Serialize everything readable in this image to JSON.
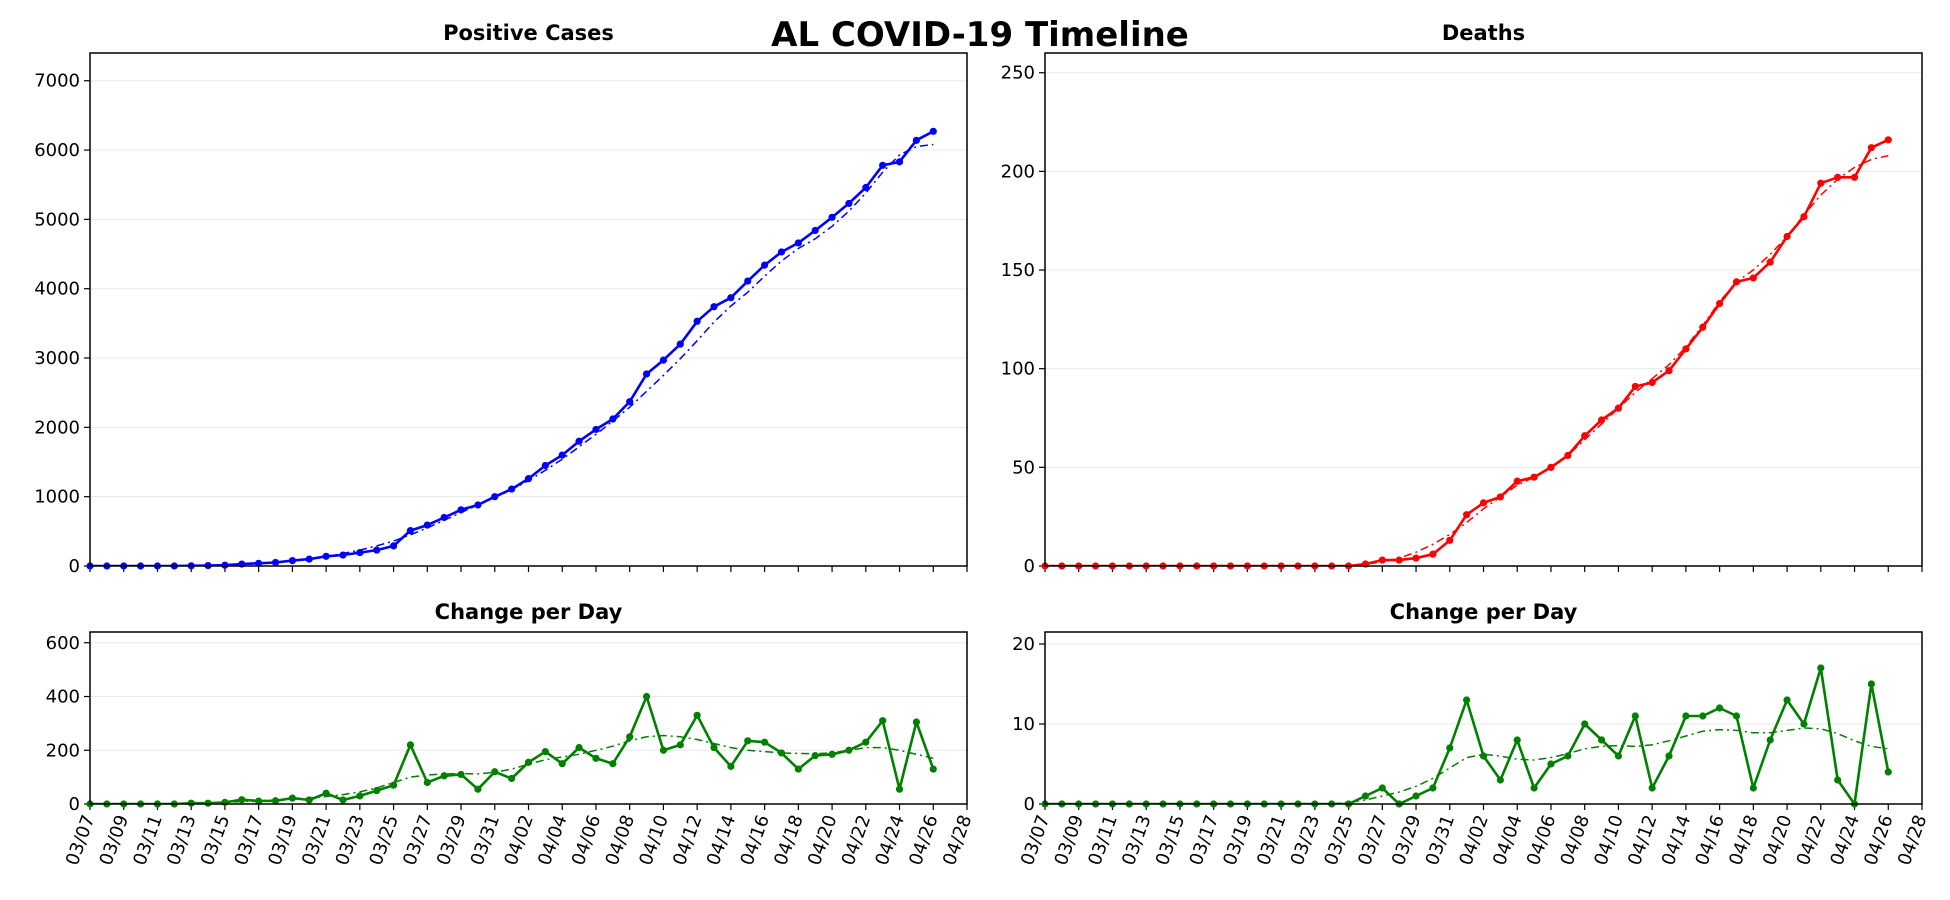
{
  "suptitle": "AL COVID-19 Timeline",
  "colors": {
    "cases": "#0000ff",
    "deaths": "#ff0000",
    "change": "#008000"
  },
  "chart_data": [
    {
      "id": "cases",
      "type": "line",
      "title": "Positive Cases",
      "color": "#0000ff",
      "x_start": "03/07",
      "x": [
        "03/07",
        "03/08",
        "03/09",
        "03/10",
        "03/11",
        "03/12",
        "03/13",
        "03/14",
        "03/15",
        "03/16",
        "03/17",
        "03/18",
        "03/19",
        "03/20",
        "03/21",
        "03/22",
        "03/23",
        "03/24",
        "03/25",
        "03/26",
        "03/27",
        "03/28",
        "03/29",
        "03/30",
        "03/31",
        "04/01",
        "04/02",
        "04/03",
        "04/04",
        "04/05",
        "04/06",
        "04/07",
        "04/08",
        "04/09",
        "04/10",
        "04/11",
        "04/12",
        "04/13",
        "04/14",
        "04/15",
        "04/16",
        "04/17",
        "04/18",
        "04/19",
        "04/20",
        "04/21",
        "04/22",
        "04/23",
        "04/24",
        "04/25",
        "04/26"
      ],
      "series": [
        {
          "values": [
            0,
            0,
            0,
            0,
            0,
            0,
            3,
            6,
            12,
            28,
            39,
            51,
            78,
            99,
            140,
            158,
            193,
            230,
            290,
            510,
            590,
            700,
            810,
            880,
            1000,
            1110,
            1260,
            1450,
            1600,
            1800,
            1970,
            2120,
            2370,
            2770,
            2970,
            3200,
            3530,
            3740,
            3870,
            4110,
            4340,
            4530,
            4660,
            4840,
            5030,
            5230,
            5460,
            5780,
            5830,
            6140,
            6270
          ]
        },
        {
          "style": "dashdot",
          "values": [
            0,
            0,
            0,
            0,
            0,
            0,
            3,
            8,
            15,
            25,
            38,
            55,
            78,
            105,
            140,
            180,
            230,
            290,
            360,
            450,
            550,
            660,
            770,
            880,
            990,
            1100,
            1230,
            1380,
            1540,
            1720,
            1900,
            2090,
            2290,
            2520,
            2750,
            2990,
            3250,
            3520,
            3750,
            3950,
            4180,
            4400,
            4580,
            4720,
            4900,
            5120,
            5380,
            5680,
            5930,
            6050,
            6080
          ]
        }
      ],
      "ylim": [
        0,
        7400
      ],
      "yticks": [
        0,
        1000,
        2000,
        3000,
        4000,
        5000,
        6000,
        7000
      ],
      "grid": true
    },
    {
      "id": "deaths",
      "type": "line",
      "title": "Deaths",
      "color": "#ff0000",
      "x_start": "03/07",
      "x": [
        "03/07",
        "03/08",
        "03/09",
        "03/10",
        "03/11",
        "03/12",
        "03/13",
        "03/14",
        "03/15",
        "03/16",
        "03/17",
        "03/18",
        "03/19",
        "03/20",
        "03/21",
        "03/22",
        "03/23",
        "03/24",
        "03/25",
        "03/26",
        "03/27",
        "03/28",
        "03/29",
        "03/30",
        "03/31",
        "04/01",
        "04/02",
        "04/03",
        "04/04",
        "04/05",
        "04/06",
        "04/07",
        "04/08",
        "04/09",
        "04/10",
        "04/11",
        "04/12",
        "04/13",
        "04/14",
        "04/15",
        "04/16",
        "04/17",
        "04/18",
        "04/19",
        "04/20",
        "04/21",
        "04/22",
        "04/23",
        "04/24",
        "04/25",
        "04/26"
      ],
      "series": [
        {
          "values": [
            0,
            0,
            0,
            0,
            0,
            0,
            0,
            0,
            0,
            0,
            0,
            0,
            0,
            0,
            0,
            0,
            0,
            0,
            0,
            1,
            3,
            3,
            4,
            6,
            13,
            26,
            32,
            35,
            43,
            45,
            50,
            56,
            66,
            74,
            80,
            91,
            93,
            99,
            110,
            121,
            133,
            144,
            146,
            154,
            167,
            177,
            194,
            197,
            197,
            212,
            216
          ]
        },
        {
          "style": "dashdot",
          "values": [
            0,
            0,
            0,
            0,
            0,
            0,
            0,
            0,
            0,
            0,
            0,
            0,
            0,
            0,
            0,
            0,
            0,
            0,
            0,
            1,
            2,
            4,
            7,
            11,
            16,
            22,
            29,
            35,
            41,
            45,
            50,
            56,
            64,
            72,
            80,
            88,
            95,
            102,
            111,
            122,
            134,
            144,
            150,
            158,
            167,
            178,
            188,
            196,
            202,
            206,
            208
          ]
        }
      ],
      "ylim": [
        0,
        260
      ],
      "yticks": [
        0,
        50,
        100,
        150,
        200,
        250
      ],
      "grid": true
    },
    {
      "id": "cases-change",
      "type": "line",
      "title": "Change per Day",
      "color": "#008000",
      "x_start": "03/07",
      "x": [
        "03/07",
        "03/08",
        "03/09",
        "03/10",
        "03/11",
        "03/12",
        "03/13",
        "03/14",
        "03/15",
        "03/16",
        "03/17",
        "03/18",
        "03/19",
        "03/20",
        "03/21",
        "03/22",
        "03/23",
        "03/24",
        "03/25",
        "03/26",
        "03/27",
        "03/28",
        "03/29",
        "03/30",
        "03/31",
        "04/01",
        "04/02",
        "04/03",
        "04/04",
        "04/05",
        "04/06",
        "04/07",
        "04/08",
        "04/09",
        "04/10",
        "04/11",
        "04/12",
        "04/13",
        "04/14",
        "04/15",
        "04/16",
        "04/17",
        "04/18",
        "04/19",
        "04/20",
        "04/21",
        "04/22",
        "04/23",
        "04/24",
        "04/25",
        "04/26"
      ],
      "series": [
        {
          "values": [
            0,
            0,
            0,
            0,
            0,
            0,
            3,
            3,
            6,
            16,
            11,
            12,
            22,
            15,
            40,
            15,
            30,
            50,
            70,
            220,
            80,
            105,
            110,
            55,
            120,
            95,
            155,
            195,
            150,
            210,
            170,
            150,
            250,
            400,
            200,
            220,
            330,
            210,
            140,
            235,
            230,
            190,
            130,
            180,
            185,
            200,
            230,
            310,
            55,
            305,
            130
          ]
        },
        {
          "style": "dashdot",
          "values": [
            0,
            0,
            0,
            0,
            0,
            0,
            2,
            4,
            6,
            9,
            12,
            15,
            18,
            22,
            28,
            35,
            45,
            60,
            80,
            100,
            108,
            112,
            113,
            112,
            118,
            130,
            148,
            165,
            175,
            185,
            200,
            215,
            235,
            250,
            255,
            250,
            240,
            225,
            210,
            200,
            195,
            190,
            188,
            187,
            190,
            200,
            210,
            210,
            200,
            185,
            170
          ]
        }
      ],
      "ylim": [
        0,
        640
      ],
      "yticks": [
        0,
        200,
        400,
        600
      ],
      "xticks": [
        "03/07",
        "03/09",
        "03/11",
        "03/13",
        "03/15",
        "03/17",
        "03/19",
        "03/21",
        "03/23",
        "03/25",
        "03/27",
        "03/29",
        "03/31",
        "04/02",
        "04/04",
        "04/06",
        "04/08",
        "04/10",
        "04/12",
        "04/14",
        "04/16",
        "04/18",
        "04/20",
        "04/22",
        "04/24",
        "04/26",
        "04/28"
      ],
      "grid": true
    },
    {
      "id": "deaths-change",
      "type": "line",
      "title": "Change per Day",
      "color": "#008000",
      "x_start": "03/07",
      "x": [
        "03/07",
        "03/08",
        "03/09",
        "03/10",
        "03/11",
        "03/12",
        "03/13",
        "03/14",
        "03/15",
        "03/16",
        "03/17",
        "03/18",
        "03/19",
        "03/20",
        "03/21",
        "03/22",
        "03/23",
        "03/24",
        "03/25",
        "03/26",
        "03/27",
        "03/28",
        "03/29",
        "03/30",
        "03/31",
        "04/01",
        "04/02",
        "04/03",
        "04/04",
        "04/05",
        "04/06",
        "04/07",
        "04/08",
        "04/09",
        "04/10",
        "04/11",
        "04/12",
        "04/13",
        "04/14",
        "04/15",
        "04/16",
        "04/17",
        "04/18",
        "04/19",
        "04/20",
        "04/21",
        "04/22",
        "04/23",
        "04/24",
        "04/25",
        "04/26"
      ],
      "series": [
        {
          "values": [
            0,
            0,
            0,
            0,
            0,
            0,
            0,
            0,
            0,
            0,
            0,
            0,
            0,
            0,
            0,
            0,
            0,
            0,
            0,
            1,
            2,
            0,
            1,
            2,
            7,
            13,
            6,
            3,
            8,
            2,
            5,
            6,
            10,
            8,
            6,
            11,
            2,
            6,
            11,
            11,
            12,
            11,
            2,
            8,
            13,
            10,
            17,
            3,
            0,
            15,
            4
          ]
        },
        {
          "style": "dashdot",
          "values": [
            0,
            0,
            0,
            0,
            0,
            0,
            0,
            0,
            0,
            0,
            0,
            0,
            0,
            0,
            0,
            0,
            0,
            0,
            0.2,
            0.5,
            1,
            1.5,
            2.2,
            3.2,
            4.5,
            5.8,
            6.2,
            6,
            5.6,
            5.5,
            5.8,
            6.3,
            6.9,
            7.2,
            7.3,
            7.2,
            7.4,
            7.9,
            8.5,
            9.1,
            9.3,
            9.2,
            8.9,
            8.9,
            9.2,
            9.5,
            9.4,
            8.8,
            7.9,
            7.2,
            6.9
          ]
        }
      ],
      "ylim": [
        0,
        21.5
      ],
      "yticks": [
        0,
        10,
        20
      ],
      "xticks": [
        "03/07",
        "03/09",
        "03/11",
        "03/13",
        "03/15",
        "03/17",
        "03/19",
        "03/21",
        "03/23",
        "03/25",
        "03/27",
        "03/29",
        "03/31",
        "04/02",
        "04/04",
        "04/06",
        "04/08",
        "04/10",
        "04/12",
        "04/14",
        "04/16",
        "04/18",
        "04/20",
        "04/22",
        "04/24",
        "04/26",
        "04/28"
      ],
      "grid": true
    }
  ]
}
